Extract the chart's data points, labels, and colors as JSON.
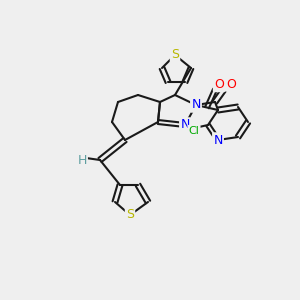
{
  "bg_color": "#efefef",
  "bond_color": "#1a1a1a",
  "bond_lw": 1.5,
  "atom_colors": {
    "N": "#0000ff",
    "O": "#ff0000",
    "S": "#b8b800",
    "Cl": "#00aa00",
    "H": "#5f9ea0"
  },
  "font_size": 9,
  "font_size_small": 8
}
